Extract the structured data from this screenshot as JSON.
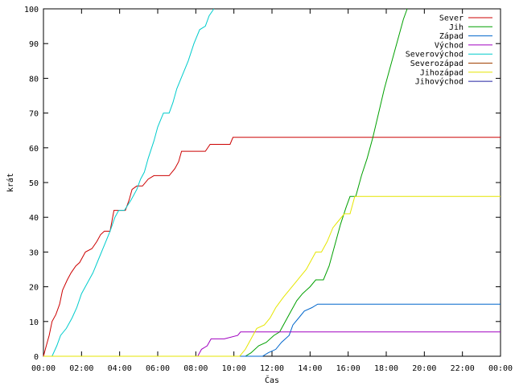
{
  "chart_data": {
    "type": "line",
    "title": "",
    "xlabel": "Čas",
    "ylabel": "krát",
    "xlim": [
      0,
      24
    ],
    "ylim": [
      0,
      100
    ],
    "x_unit": "hours",
    "grid": false,
    "legend_position": "top-right",
    "x_ticks": [
      {
        "v": 0,
        "label": "00:00"
      },
      {
        "v": 2,
        "label": "02:00"
      },
      {
        "v": 4,
        "label": "04:00"
      },
      {
        "v": 6,
        "label": "06:00"
      },
      {
        "v": 8,
        "label": "08:00"
      },
      {
        "v": 10,
        "label": "10:00"
      },
      {
        "v": 12,
        "label": "12:00"
      },
      {
        "v": 14,
        "label": "14:00"
      },
      {
        "v": 16,
        "label": "16:00"
      },
      {
        "v": 18,
        "label": "18:00"
      },
      {
        "v": 20,
        "label": "20:00"
      },
      {
        "v": 22,
        "label": "22:00"
      },
      {
        "v": 24,
        "label": "00:00"
      }
    ],
    "y_ticks": [
      {
        "v": 0,
        "label": "0"
      },
      {
        "v": 10,
        "label": "10"
      },
      {
        "v": 20,
        "label": "20"
      },
      {
        "v": 30,
        "label": "30"
      },
      {
        "v": 40,
        "label": "40"
      },
      {
        "v": 50,
        "label": "50"
      },
      {
        "v": 60,
        "label": "60"
      },
      {
        "v": 70,
        "label": "70"
      },
      {
        "v": 80,
        "label": "80"
      },
      {
        "v": 90,
        "label": "90"
      },
      {
        "v": 100,
        "label": "100"
      }
    ],
    "series": [
      {
        "name": "Sever",
        "color": "#cc0000",
        "points": [
          [
            0,
            0
          ],
          [
            0.15,
            3
          ],
          [
            0.3,
            6
          ],
          [
            0.45,
            10
          ],
          [
            0.65,
            12
          ],
          [
            0.85,
            15
          ],
          [
            1.0,
            19
          ],
          [
            1.25,
            22
          ],
          [
            1.45,
            24
          ],
          [
            1.7,
            26
          ],
          [
            1.9,
            27
          ],
          [
            2.2,
            30
          ],
          [
            2.55,
            31
          ],
          [
            2.8,
            33
          ],
          [
            3.0,
            35
          ],
          [
            3.2,
            36
          ],
          [
            3.5,
            36
          ],
          [
            3.7,
            42
          ],
          [
            4.3,
            42
          ],
          [
            4.5,
            45
          ],
          [
            4.65,
            48
          ],
          [
            4.9,
            49
          ],
          [
            5.2,
            49
          ],
          [
            5.5,
            51
          ],
          [
            5.8,
            52
          ],
          [
            6.6,
            52
          ],
          [
            6.9,
            54
          ],
          [
            7.1,
            56
          ],
          [
            7.25,
            59
          ],
          [
            8.5,
            59
          ],
          [
            8.75,
            61
          ],
          [
            9.8,
            61
          ],
          [
            9.95,
            63
          ],
          [
            24,
            63
          ]
        ]
      },
      {
        "name": "Jih",
        "color": "#00a000",
        "points": [
          [
            0,
            0
          ],
          [
            10.6,
            0
          ],
          [
            10.9,
            1
          ],
          [
            11.3,
            3
          ],
          [
            11.7,
            4
          ],
          [
            12.1,
            6
          ],
          [
            12.4,
            7
          ],
          [
            12.7,
            10
          ],
          [
            13.0,
            13
          ],
          [
            13.3,
            16
          ],
          [
            13.6,
            18
          ],
          [
            14.0,
            20
          ],
          [
            14.3,
            22
          ],
          [
            14.7,
            22
          ],
          [
            15.0,
            26
          ],
          [
            15.3,
            32
          ],
          [
            15.6,
            38
          ],
          [
            15.9,
            43
          ],
          [
            16.1,
            46
          ],
          [
            16.4,
            46
          ],
          [
            16.7,
            52
          ],
          [
            17.0,
            57
          ],
          [
            17.3,
            63
          ],
          [
            17.6,
            70
          ],
          [
            17.9,
            77
          ],
          [
            18.2,
            83
          ],
          [
            18.6,
            91
          ],
          [
            18.9,
            97
          ],
          [
            19.1,
            100
          ]
        ]
      },
      {
        "name": "Západ",
        "color": "#0066cc",
        "points": [
          [
            0,
            0
          ],
          [
            11.5,
            0
          ],
          [
            11.8,
            1
          ],
          [
            12.2,
            2
          ],
          [
            12.5,
            4
          ],
          [
            12.9,
            6
          ],
          [
            13.1,
            9
          ],
          [
            13.4,
            11
          ],
          [
            13.7,
            13
          ],
          [
            14.1,
            14
          ],
          [
            14.4,
            15
          ],
          [
            24,
            15
          ]
        ]
      },
      {
        "name": "Východ",
        "color": "#a000c0",
        "points": [
          [
            0,
            0
          ],
          [
            8.1,
            0
          ],
          [
            8.3,
            2
          ],
          [
            8.6,
            3
          ],
          [
            8.8,
            5
          ],
          [
            9.2,
            5
          ],
          [
            9.5,
            5
          ],
          [
            10.2,
            6
          ],
          [
            10.35,
            7
          ],
          [
            24,
            7
          ]
        ]
      },
      {
        "name": "Severovýchod",
        "color": "#00cccc",
        "points": [
          [
            0,
            0
          ],
          [
            0.45,
            0
          ],
          [
            0.7,
            3
          ],
          [
            0.9,
            6
          ],
          [
            1.2,
            8
          ],
          [
            1.5,
            11
          ],
          [
            1.75,
            14
          ],
          [
            2.0,
            18
          ],
          [
            2.3,
            21
          ],
          [
            2.6,
            24
          ],
          [
            2.9,
            28
          ],
          [
            3.2,
            32
          ],
          [
            3.5,
            36
          ],
          [
            3.75,
            40
          ],
          [
            3.95,
            42
          ],
          [
            4.25,
            42
          ],
          [
            4.6,
            45
          ],
          [
            4.9,
            48
          ],
          [
            5.1,
            51
          ],
          [
            5.3,
            53
          ],
          [
            5.5,
            57
          ],
          [
            5.8,
            62
          ],
          [
            6.0,
            66
          ],
          [
            6.3,
            70
          ],
          [
            6.6,
            70
          ],
          [
            6.8,
            73
          ],
          [
            7.0,
            77
          ],
          [
            7.3,
            81
          ],
          [
            7.6,
            85
          ],
          [
            7.9,
            90
          ],
          [
            8.2,
            94
          ],
          [
            8.5,
            95
          ],
          [
            8.7,
            98
          ],
          [
            8.95,
            100
          ]
        ]
      },
      {
        "name": "Severozápad",
        "color": "#a04000",
        "points": []
      },
      {
        "name": "Jihozápad",
        "color": "#e6e600",
        "points": [
          [
            0,
            0
          ],
          [
            10.3,
            0
          ],
          [
            10.6,
            2
          ],
          [
            10.9,
            5
          ],
          [
            11.2,
            8
          ],
          [
            11.6,
            9
          ],
          [
            11.9,
            11
          ],
          [
            12.2,
            14
          ],
          [
            12.6,
            17
          ],
          [
            12.9,
            19
          ],
          [
            13.2,
            21
          ],
          [
            13.5,
            23
          ],
          [
            13.8,
            25
          ],
          [
            14.0,
            27
          ],
          [
            14.3,
            30
          ],
          [
            14.6,
            30
          ],
          [
            14.9,
            33
          ],
          [
            15.2,
            37
          ],
          [
            15.5,
            39
          ],
          [
            15.8,
            41
          ],
          [
            16.1,
            41
          ],
          [
            16.35,
            46
          ],
          [
            24,
            46
          ]
        ]
      },
      {
        "name": "Jihovýchod",
        "color": "#2020a0",
        "points": []
      }
    ]
  }
}
